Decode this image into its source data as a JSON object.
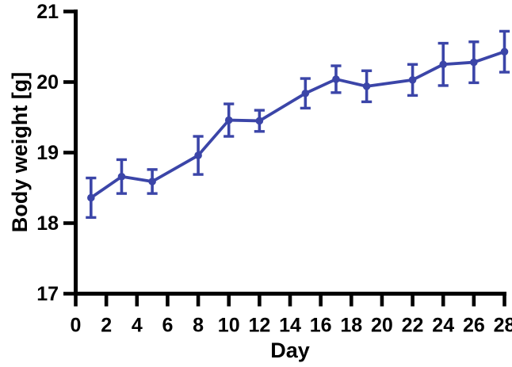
{
  "chart_data": {
    "type": "line",
    "title": "",
    "xlabel": "Day",
    "ylabel": "Body weight [g]",
    "x": [
      1,
      3,
      5,
      8,
      10,
      12,
      15,
      17,
      19,
      22,
      24,
      26,
      28
    ],
    "series": [
      {
        "name": "Body weight",
        "values": [
          18.36,
          18.66,
          18.59,
          18.96,
          19.46,
          19.45,
          19.84,
          20.04,
          19.94,
          20.03,
          20.25,
          20.28,
          20.43
        ],
        "errors": [
          0.28,
          0.24,
          0.17,
          0.27,
          0.23,
          0.15,
          0.21,
          0.19,
          0.22,
          0.22,
          0.3,
          0.29,
          0.29
        ],
        "color": "#3B45A8",
        "marker": "circle",
        "error_bars": true
      }
    ],
    "xlim": [
      0,
      28
    ],
    "ylim": [
      17,
      21
    ],
    "x_ticks": [
      0,
      2,
      4,
      6,
      8,
      10,
      12,
      14,
      16,
      18,
      20,
      22,
      24,
      26,
      28
    ],
    "y_ticks": [
      17,
      18,
      19,
      20,
      21
    ],
    "grid": false,
    "legend": "none",
    "axis_color": "#000000",
    "background_color": "#ffffff"
  }
}
